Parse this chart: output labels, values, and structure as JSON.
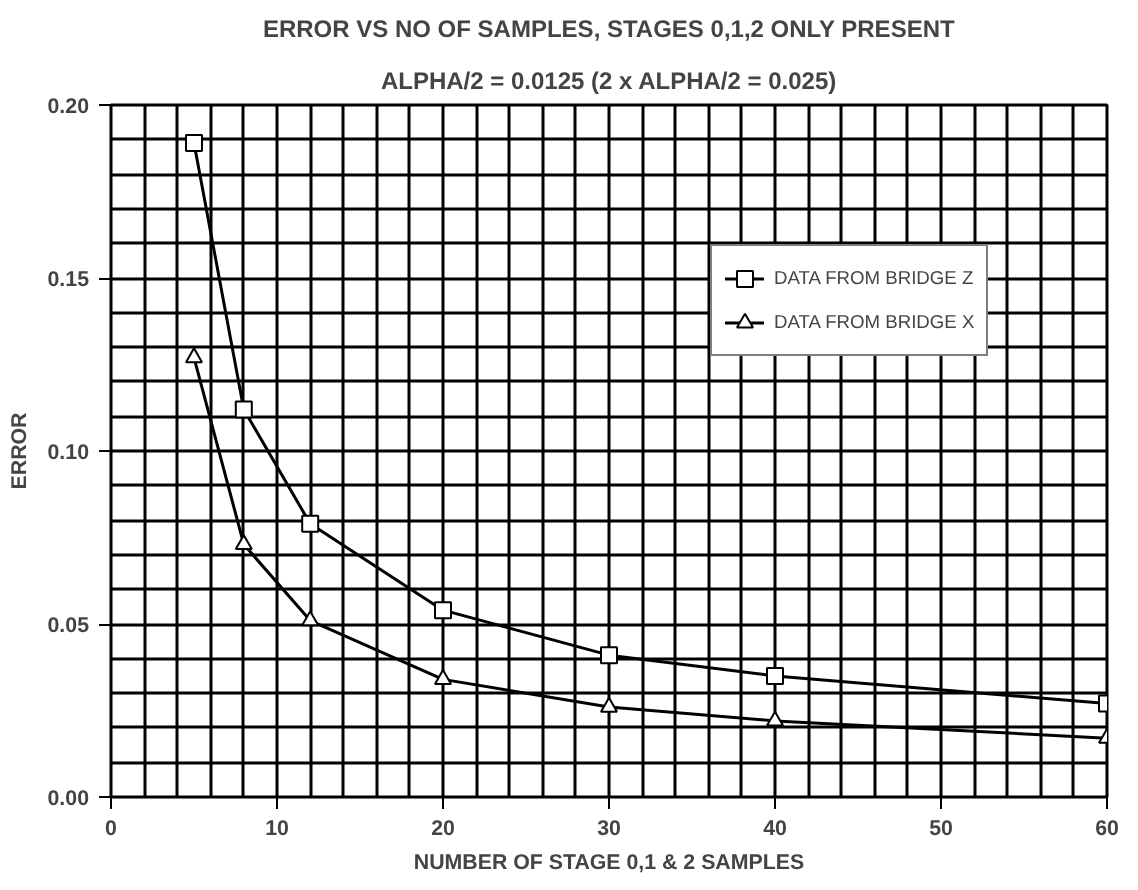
{
  "chart_data": {
    "type": "line",
    "title": "ERROR VS NO OF SAMPLES, STAGES 0,1,2 ONLY PRESENT",
    "subtitle": "ALPHA/2 = 0.0125 (2 x ALPHA/2 = 0.025)",
    "xlabel": "NUMBER OF STAGE 0,1 & 2 SAMPLES",
    "ylabel": "ERROR",
    "x": [
      5,
      8,
      12,
      20,
      30,
      40,
      60
    ],
    "series": [
      {
        "name": "DATA FROM BRIDGE Z",
        "color": "#000000",
        "marker": "square",
        "values": [
          0.189,
          0.112,
          0.079,
          0.054,
          0.041,
          0.035,
          0.027
        ]
      },
      {
        "name": "DATA FROM BRIDGE X",
        "color": "#000000",
        "marker": "triangle",
        "values": [
          0.127,
          0.073,
          0.051,
          0.034,
          0.026,
          0.022,
          0.017
        ]
      }
    ],
    "xlim": [
      0,
      60
    ],
    "xticks": [
      0,
      10,
      20,
      30,
      40,
      50,
      60
    ],
    "ylim": [
      0,
      0.2
    ],
    "yticks": [
      {
        "value": 0,
        "label": "0.00"
      },
      {
        "value": 0.05,
        "label": "0.05"
      },
      {
        "value": 0.1,
        "label": "0.10"
      },
      {
        "value": 0.15,
        "label": "0.15"
      },
      {
        "value": 0.2,
        "label": "0.20"
      }
    ],
    "grid": true,
    "legend": "right",
    "line_style": "solid"
  }
}
